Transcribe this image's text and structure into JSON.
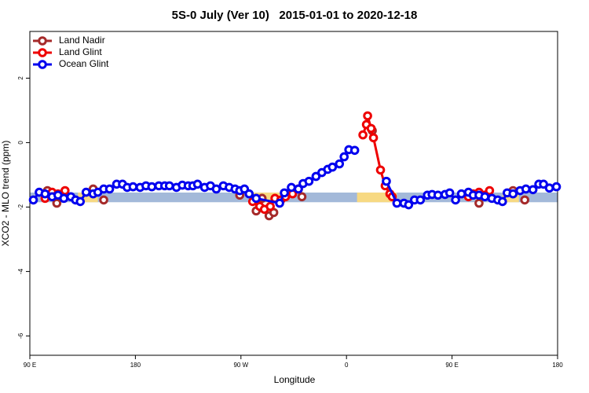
{
  "chart_data": {
    "type": "line",
    "title": "5S-0 July (Ver 10)   2015-01-01 to 2020-12-18",
    "x_label": "Longitude",
    "y_label": "XCO2 - MLO trend (ppm)",
    "xlim": [
      90,
      540
    ],
    "xticks": [
      {
        "value": 90,
        "label": "90 E"
      },
      180,
      {
        "value": 270,
        "label": "90 W"
      },
      {
        "value": 360,
        "label": "0"
      },
      {
        "value": 450,
        "label": "90 E"
      },
      {
        "value": 540,
        "label": "180"
      }
    ],
    "ylim": [
      -6.6,
      3.45
    ],
    "yticks": [
      2,
      0,
      -2,
      -4,
      -6
    ],
    "legend": "top-left",
    "reference_band": {
      "ylim": [
        -1.85,
        -1.55
      ],
      "color": "#a3b9d9",
      "highlight_color": "#f7d982",
      "highlights": [
        [
          131,
          148
        ],
        [
          279,
          305
        ],
        [
          369,
          403
        ],
        [
          493,
          507
        ]
      ]
    },
    "series": [
      {
        "name": "Land Nadir",
        "color": "#a52a2a",
        "line": false,
        "x": [
          105,
          113,
          144,
          153,
          269,
          283,
          288,
          294,
          298,
          322,
          382,
          473,
          502,
          512
        ],
        "values": [
          -1.49,
          -1.88,
          -1.44,
          -1.78,
          -1.63,
          -2.12,
          -1.73,
          -2.27,
          -2.17,
          -1.68,
          0.37,
          -1.88,
          -1.49,
          -1.78
        ]
      },
      {
        "name": "Land Glint",
        "color": "#ee0000",
        "line": true,
        "x": [
          103,
          109,
          114,
          120,
          200,
          280,
          286,
          290,
          295,
          299,
          304,
          308,
          314,
          319,
          340,
          374,
          377,
          378,
          381,
          383,
          389,
          393,
          397,
          399,
          430,
          464,
          468,
          473,
          478,
          482
        ],
        "values": [
          -1.73,
          -1.54,
          -1.59,
          -1.49,
          null,
          -1.83,
          -1.98,
          -2.07,
          -1.98,
          -1.73,
          -1.78,
          -1.68,
          -1.59,
          -1.44,
          null,
          0.24,
          0.56,
          0.83,
          0.44,
          0.15,
          -0.85,
          -1.34,
          -1.59,
          -1.68,
          null,
          -1.68,
          -1.59,
          -1.54,
          -1.63,
          -1.49
        ]
      },
      {
        "name": "Ocean Glint",
        "color": "#0000ee",
        "line": true,
        "x": [
          93,
          98,
          103,
          109,
          114,
          119,
          125,
          129,
          133,
          138,
          144,
          148,
          153,
          158,
          164,
          169,
          173,
          178,
          184,
          189,
          194,
          200,
          205,
          209,
          215,
          220,
          225,
          229,
          233,
          239,
          244,
          249,
          255,
          260,
          265,
          269,
          273,
          277,
          283,
          303,
          307,
          313,
          319,
          323,
          328,
          334,
          339,
          344,
          348,
          354,
          358,
          362,
          367,
          380,
          394,
          403,
          409,
          413,
          418,
          423,
          429,
          433,
          438,
          444,
          448,
          453,
          458,
          464,
          468,
          473,
          478,
          484,
          489,
          493,
          497,
          502,
          508,
          513,
          519,
          524,
          528,
          533,
          539
        ],
        "values": [
          -1.78,
          -1.54,
          -1.59,
          -1.68,
          -1.63,
          -1.73,
          -1.68,
          -1.78,
          -1.83,
          -1.54,
          -1.59,
          -1.54,
          -1.44,
          -1.44,
          -1.29,
          -1.29,
          -1.39,
          -1.37,
          -1.39,
          -1.34,
          -1.37,
          -1.34,
          -1.34,
          -1.34,
          -1.39,
          -1.32,
          -1.34,
          -1.34,
          -1.29,
          -1.39,
          -1.34,
          -1.44,
          -1.34,
          -1.39,
          -1.44,
          -1.49,
          -1.44,
          -1.59,
          -1.73,
          -1.88,
          -1.56,
          -1.39,
          -1.44,
          -1.27,
          -1.2,
          -1.05,
          -0.93,
          -0.83,
          -0.76,
          -0.66,
          -0.44,
          -0.22,
          -0.24,
          null,
          -1.2,
          -1.88,
          -1.88,
          -1.93,
          -1.78,
          -1.78,
          -1.63,
          -1.61,
          -1.63,
          -1.61,
          -1.56,
          -1.78,
          -1.59,
          -1.54,
          -1.63,
          -1.63,
          -1.68,
          -1.73,
          -1.78,
          -1.83,
          -1.56,
          -1.59,
          -1.49,
          -1.44,
          -1.46,
          -1.29,
          -1.29,
          -1.41,
          -1.37
        ]
      }
    ]
  }
}
